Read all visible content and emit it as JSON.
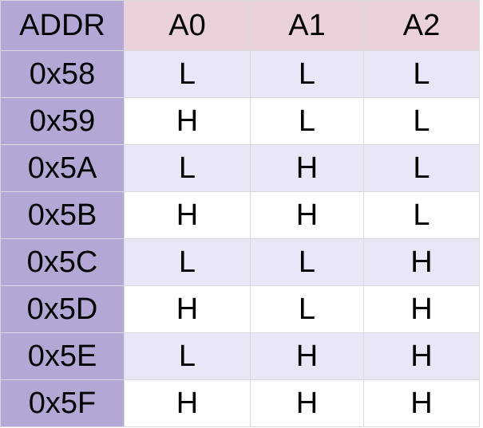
{
  "table": {
    "header": [
      "ADDR",
      "A0",
      "A1",
      "A2"
    ],
    "rows": [
      [
        "0x58",
        "L",
        "L",
        "L"
      ],
      [
        "0x59",
        "H",
        "L",
        "L"
      ],
      [
        "0x5A",
        "L",
        "H",
        "L"
      ],
      [
        "0x5B",
        "H",
        "H",
        "L"
      ],
      [
        "0x5C",
        "L",
        "L",
        "H"
      ],
      [
        "0x5D",
        "H",
        "L",
        "H"
      ],
      [
        "0x5E",
        "L",
        "H",
        "H"
      ],
      [
        "0x5F",
        "H",
        "H",
        "H"
      ]
    ]
  }
}
